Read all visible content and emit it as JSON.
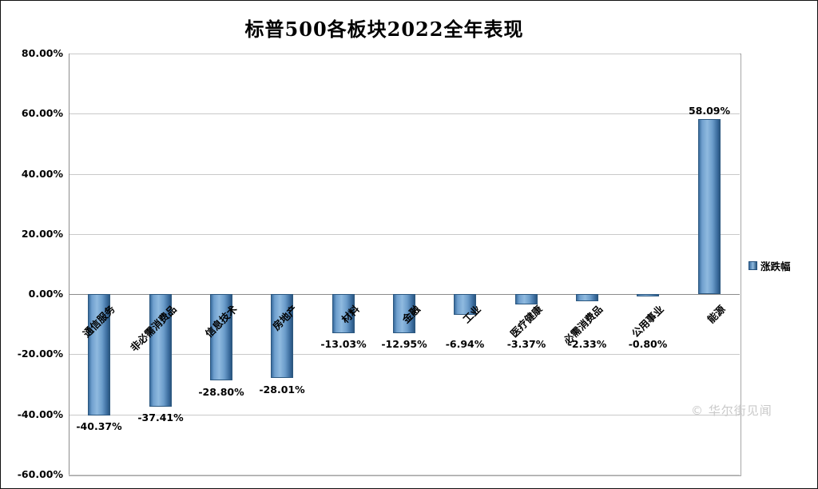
{
  "title": "标普500各板块2022全年表现",
  "legend": {
    "label": "涨跌幅"
  },
  "watermark": "© 华尔街见闻",
  "colors": {
    "bar": "#4F81BD",
    "bar_dark": "#2B577F",
    "grid": "#C9C9C9",
    "axis": "#8C8C8C"
  },
  "chart_data": {
    "type": "bar",
    "title": "标普500各板块2022全年表现",
    "series_name": "涨跌幅",
    "categories": [
      "通信服务",
      "非必需消费品",
      "信息技术",
      "房地产",
      "材料",
      "金融",
      "工业",
      "医疗健康",
      "必需消费品",
      "公用事业",
      "能源"
    ],
    "values": [
      -40.37,
      -37.41,
      -28.8,
      -28.01,
      -13.03,
      -12.95,
      -6.94,
      -3.37,
      -2.33,
      -0.8,
      58.09
    ],
    "value_labels": [
      "-40.37%",
      "-37.41%",
      "-28.80%",
      "-28.01%",
      "-13.03%",
      "-12.95%",
      "-6.94%",
      "-3.37%",
      "-2.33%",
      "-0.80%",
      "58.09%"
    ],
    "ylim": [
      -60,
      80
    ],
    "ytick_values": [
      80,
      60,
      40,
      20,
      0,
      -20,
      -40,
      -60
    ],
    "ytick_labels": [
      "80.00%",
      "60.00%",
      "40.00%",
      "20.00%",
      "0.00%",
      "-20.00%",
      "-40.00%",
      "-60.00%"
    ],
    "grid": true,
    "legend_position": "right"
  }
}
